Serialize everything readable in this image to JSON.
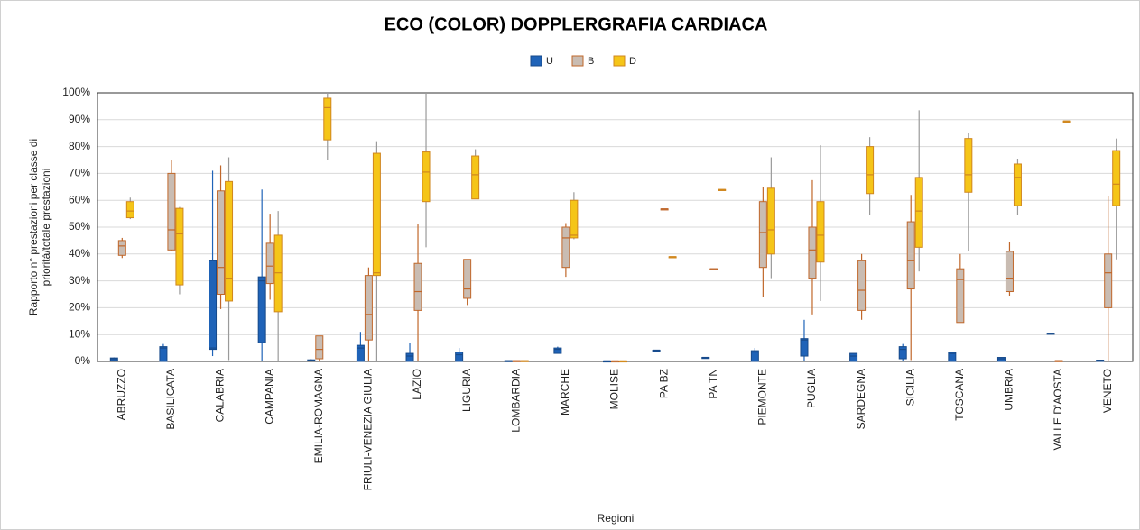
{
  "chart_data": {
    "type": "box",
    "title": "ECO (COLOR) DOPPLERGRAFIA  CARDIACA",
    "xlabel": "Regioni",
    "ylabel": [
      "Rapporto n° prestazioni per classe di",
      "priorità/totale prestazioni"
    ],
    "legend": "top",
    "grid": true,
    "ylim": [
      0,
      100
    ],
    "yticks": [
      {
        "value": 0,
        "label": "0%"
      },
      {
        "value": 10,
        "label": "10%"
      },
      {
        "value": 20,
        "label": "20%"
      },
      {
        "value": 30,
        "label": "30%"
      },
      {
        "value": 40,
        "label": "40%"
      },
      {
        "value": 50,
        "label": "50%"
      },
      {
        "value": 60,
        "label": "60%"
      },
      {
        "value": 70,
        "label": "70%"
      },
      {
        "value": 80,
        "label": "80%"
      },
      {
        "value": 90,
        "label": "90%"
      },
      {
        "value": 100,
        "label": "100%"
      }
    ],
    "categories": [
      "ABRUZZO",
      "BASILICATA",
      "CALABRIA",
      "CAMPANIA",
      "EMILIA-ROMAGNA",
      "FRIULI-VENEZIA GIULIA",
      "LAZIO",
      "LIGURIA",
      "LOMBARDIA",
      "MARCHE",
      "MOLISE",
      "PA BZ",
      "PA TN",
      "PIEMONTE",
      "PUGLIA",
      "SARDEGNA",
      "SICILIA",
      "TOSCANA",
      "UMBRIA",
      "VALLE D'AOSTA",
      "VENETO"
    ],
    "series": [
      {
        "name": "U",
        "color": "#1f63b8",
        "edge": "#174a8a",
        "whisker": "#1f63b8",
        "values": [
          {
            "min": 0,
            "q1": 0.3,
            "median": 1,
            "q3": 1.3,
            "max": 1.5
          },
          {
            "min": 0,
            "q1": 0,
            "median": 5,
            "q3": 5.5,
            "max": 6.5
          },
          {
            "min": 2,
            "q1": 4.5,
            "median": 5,
            "q3": 37.5,
            "max": 71
          },
          {
            "min": 0,
            "q1": 7,
            "median": 30,
            "q3": 31.5,
            "max": 64
          },
          {
            "min": 0,
            "q1": 0.2,
            "median": 0.4,
            "q3": 0.6,
            "max": 0.8
          },
          {
            "min": 0,
            "q1": 0,
            "median": 5,
            "q3": 6,
            "max": 11
          },
          {
            "min": 0,
            "q1": 0,
            "median": 2,
            "q3": 3,
            "max": 7
          },
          {
            "min": 0,
            "q1": 0,
            "median": 2.5,
            "q3": 3.5,
            "max": 5
          },
          {
            "min": 0,
            "q1": 0,
            "median": 0.2,
            "q3": 0.3,
            "max": 0.3
          },
          {
            "min": 3,
            "q1": 3,
            "median": 4.5,
            "q3": 5,
            "max": 5.5
          },
          {
            "min": 0,
            "q1": 0,
            "median": 0.2,
            "q3": 0.2,
            "max": 0.2
          },
          {
            "min": 4.2,
            "q1": 4.2,
            "median": 4.2,
            "q3": 4.2,
            "max": 4.2
          },
          {
            "min": 1.5,
            "q1": 1.5,
            "median": 1.5,
            "q3": 1.5,
            "max": 1.5
          },
          {
            "min": 0,
            "q1": 0,
            "median": 3.5,
            "q3": 4,
            "max": 5
          },
          {
            "min": 0,
            "q1": 2,
            "median": 8,
            "q3": 8.5,
            "max": 15.5
          },
          {
            "min": 0,
            "q1": 0,
            "median": 2,
            "q3": 3,
            "max": 3
          },
          {
            "min": 0,
            "q1": 1,
            "median": 4.5,
            "q3": 5.5,
            "max": 6.5
          },
          {
            "min": 0,
            "q1": 0,
            "median": 3,
            "q3": 3.5,
            "max": 3.5
          },
          {
            "min": 0,
            "q1": 0,
            "median": 1,
            "q3": 1.5,
            "max": 1.5
          },
          {
            "min": 10.5,
            "q1": 10.5,
            "median": 10.5,
            "q3": 10.5,
            "max": 10.5
          },
          {
            "min": 0,
            "q1": 0,
            "median": 0.3,
            "q3": 0.5,
            "max": 0.5
          }
        ]
      },
      {
        "name": "B",
        "color": "#c9bcb2",
        "edge": "#c0672a",
        "whisker": "#c0672a",
        "values": [
          {
            "min": 38.5,
            "q1": 39.5,
            "median": 43,
            "q3": 45,
            "max": 46
          },
          {
            "min": 41,
            "q1": 41.5,
            "median": 49,
            "q3": 70,
            "max": 75
          },
          {
            "min": 19.5,
            "q1": 25,
            "median": 35,
            "q3": 63.5,
            "max": 73
          },
          {
            "min": 23,
            "q1": 29,
            "median": 35.5,
            "q3": 44,
            "max": 55
          },
          {
            "min": 0,
            "q1": 1,
            "median": 4.5,
            "q3": 9.5,
            "max": 9.5
          },
          {
            "min": 0,
            "q1": 8,
            "median": 17.5,
            "q3": 32,
            "max": 35
          },
          {
            "min": 0,
            "q1": 19,
            "median": 26,
            "q3": 36.5,
            "max": 51
          },
          {
            "min": 21,
            "q1": 23.5,
            "median": 27,
            "q3": 38,
            "max": 38
          },
          {
            "min": 0,
            "q1": 0,
            "median": 0.2,
            "q3": 0.3,
            "max": 0.3
          },
          {
            "min": 31.5,
            "q1": 35,
            "median": 46,
            "q3": 50,
            "max": 51.5
          },
          {
            "min": 0,
            "q1": 0,
            "median": 0.2,
            "q3": 0.2,
            "max": 0.2
          },
          {
            "min": 56.8,
            "q1": 56.8,
            "median": 56.8,
            "q3": 56.8,
            "max": 56.8
          },
          {
            "min": 34.5,
            "q1": 34.5,
            "median": 34.5,
            "q3": 34.5,
            "max": 34.5
          },
          {
            "min": 24,
            "q1": 35,
            "median": 48,
            "q3": 59.5,
            "max": 65
          },
          {
            "min": 17.5,
            "q1": 31,
            "median": 41.5,
            "q3": 50,
            "max": 67.5
          },
          {
            "min": 15.5,
            "q1": 19,
            "median": 26.5,
            "q3": 37.5,
            "max": 40
          },
          {
            "min": 0.5,
            "q1": 27,
            "median": 37.5,
            "q3": 52,
            "max": 62
          },
          {
            "min": 14.5,
            "q1": 14.5,
            "median": 30.5,
            "q3": 34.5,
            "max": 40
          },
          {
            "min": 24.5,
            "q1": 26,
            "median": 31,
            "q3": 41,
            "max": 44.5
          },
          {
            "min": 0.3,
            "q1": 0.3,
            "median": 0.3,
            "q3": 0.3,
            "max": 0.3
          },
          {
            "min": 0,
            "q1": 20,
            "median": 33,
            "q3": 40,
            "max": 61.5
          }
        ]
      },
      {
        "name": "D",
        "color": "#f5c518",
        "edge": "#d0861e",
        "whisker": "#9a9a9a",
        "values": [
          {
            "min": 53,
            "q1": 53.5,
            "median": 56,
            "q3": 59.5,
            "max": 61
          },
          {
            "min": 25,
            "q1": 28.5,
            "median": 47.5,
            "q3": 57,
            "max": 57.5
          },
          {
            "min": 0.5,
            "q1": 22.5,
            "median": 31,
            "q3": 67,
            "max": 76
          },
          {
            "min": 0,
            "q1": 18.5,
            "median": 33,
            "q3": 47,
            "max": 56
          },
          {
            "min": 75,
            "q1": 82.5,
            "median": 94.5,
            "q3": 98,
            "max": 100
          },
          {
            "min": 0,
            "q1": 32,
            "median": 33,
            "q3": 77.5,
            "max": 82
          },
          {
            "min": 42.5,
            "q1": 59.5,
            "median": 70.5,
            "q3": 78,
            "max": 100
          },
          {
            "min": 60.5,
            "q1": 60.5,
            "median": 69.5,
            "q3": 76.5,
            "max": 79
          },
          {
            "min": 0,
            "q1": 0,
            "median": 0.2,
            "q3": 0.3,
            "max": 0.3
          },
          {
            "min": 45.5,
            "q1": 46,
            "median": 47,
            "q3": 60,
            "max": 63
          },
          {
            "min": 0,
            "q1": 0,
            "median": 0.2,
            "q3": 0.2,
            "max": 0.2
          },
          {
            "min": 39,
            "q1": 39,
            "median": 39,
            "q3": 39,
            "max": 39
          },
          {
            "min": 64,
            "q1": 64,
            "median": 64,
            "q3": 64,
            "max": 64
          },
          {
            "min": 31,
            "q1": 40,
            "median": 49,
            "q3": 64.5,
            "max": 76
          },
          {
            "min": 22.5,
            "q1": 37,
            "median": 47,
            "q3": 59.5,
            "max": 80.5
          },
          {
            "min": 54.5,
            "q1": 62.5,
            "median": 69.5,
            "q3": 80,
            "max": 83.5
          },
          {
            "min": 33.5,
            "q1": 42.5,
            "median": 56,
            "q3": 68.5,
            "max": 93.5
          },
          {
            "min": 41,
            "q1": 63,
            "median": 69.5,
            "q3": 83,
            "max": 85
          },
          {
            "min": 54.5,
            "q1": 58,
            "median": 68.5,
            "q3": 73.5,
            "max": 75.5
          },
          {
            "min": 89.5,
            "q1": 89.5,
            "median": 89.5,
            "q3": 89.5,
            "max": 89.5
          },
          {
            "min": 38,
            "q1": 58,
            "median": 66,
            "q3": 78.5,
            "max": 83
          }
        ]
      }
    ]
  }
}
